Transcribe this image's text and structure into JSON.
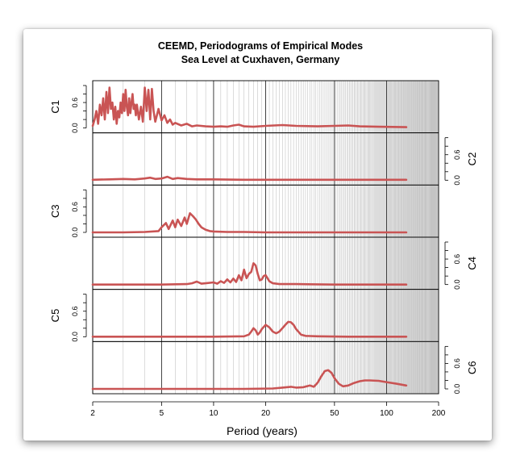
{
  "chart_data": {
    "type": "line",
    "title": "CEEMD, Periodograms of Empirical Modes",
    "subtitle": "Sea Level at Cuxhaven, Germany",
    "xlabel": "Period (years)",
    "xscale": "log",
    "xlim": [
      2,
      200
    ],
    "x_ticks": [
      2,
      5,
      10,
      20,
      50,
      100,
      200
    ],
    "x_tick_labels": [
      "2",
      "5",
      "10",
      "20",
      "50",
      "100",
      "200"
    ],
    "panel_ylim": [
      0,
      1.0
    ],
    "y_ticks": [
      0.0,
      0.6
    ],
    "y_tick_labels": [
      "0.0",
      "0.6"
    ],
    "grid": "vertical lines at each integer period",
    "line_color": "#c95454",
    "series": [
      {
        "name": "C1",
        "axis_side": "left",
        "x": [
          2.0,
          2.05,
          2.1,
          2.15,
          2.2,
          2.25,
          2.3,
          2.35,
          2.4,
          2.45,
          2.5,
          2.55,
          2.6,
          2.65,
          2.7,
          2.75,
          2.8,
          2.85,
          2.9,
          2.95,
          3.0,
          3.05,
          3.1,
          3.15,
          3.2,
          3.25,
          3.3,
          3.35,
          3.4,
          3.45,
          3.5,
          3.55,
          3.6,
          3.7,
          3.8,
          3.9,
          4.0,
          4.1,
          4.2,
          4.3,
          4.4,
          4.5,
          4.6,
          4.7,
          4.8,
          5.0,
          5.2,
          5.4,
          5.6,
          5.8,
          6.0,
          6.5,
          7.0,
          7.5,
          8.0,
          9.0,
          10.0,
          11.0,
          12.0,
          13.0,
          14.0,
          15.0,
          17.0,
          20.0,
          25.0,
          30.0,
          40.0,
          50.0,
          60.0,
          70.0,
          90.0,
          130.0
        ],
        "y": [
          0.05,
          0.2,
          0.4,
          0.1,
          0.55,
          0.3,
          0.7,
          0.2,
          0.85,
          0.35,
          0.95,
          0.45,
          0.6,
          0.2,
          0.5,
          0.1,
          0.4,
          0.25,
          0.6,
          0.35,
          0.8,
          0.4,
          0.9,
          0.5,
          0.3,
          0.7,
          0.35,
          0.6,
          0.8,
          0.45,
          0.55,
          0.3,
          0.55,
          0.2,
          0.5,
          0.15,
          0.95,
          0.4,
          0.9,
          0.2,
          0.92,
          0.4,
          0.15,
          0.3,
          0.45,
          0.18,
          0.3,
          0.12,
          0.2,
          0.08,
          0.12,
          0.06,
          0.1,
          0.04,
          0.06,
          0.04,
          0.03,
          0.04,
          0.03,
          0.06,
          0.08,
          0.04,
          0.03,
          0.05,
          0.07,
          0.05,
          0.04,
          0.05,
          0.06,
          0.04,
          0.03,
          0.02
        ]
      },
      {
        "name": "C2",
        "axis_side": "right",
        "x": [
          2.0,
          2.5,
          3.0,
          3.5,
          4.0,
          4.3,
          4.6,
          5.0,
          5.4,
          5.8,
          6.2,
          7.0,
          8.0,
          10.0,
          15.0,
          20.0,
          30.0,
          50.0,
          80.0,
          130.0
        ],
        "y": [
          0.01,
          0.02,
          0.03,
          0.02,
          0.04,
          0.06,
          0.03,
          0.04,
          0.08,
          0.03,
          0.05,
          0.03,
          0.02,
          0.02,
          0.01,
          0.01,
          0.01,
          0.01,
          0.01,
          0.01
        ]
      },
      {
        "name": "C3",
        "axis_side": "left",
        "x": [
          2.0,
          3.0,
          4.0,
          4.8,
          5.0,
          5.3,
          5.5,
          5.8,
          6.0,
          6.2,
          6.5,
          6.8,
          7.0,
          7.3,
          7.6,
          7.9,
          8.2,
          8.5,
          9.0,
          9.5,
          10.0,
          12.0,
          15.0,
          20.0,
          40.0,
          130.0
        ],
        "y": [
          0.0,
          0.0,
          0.01,
          0.03,
          0.12,
          0.22,
          0.08,
          0.28,
          0.12,
          0.3,
          0.15,
          0.35,
          0.2,
          0.45,
          0.38,
          0.3,
          0.2,
          0.12,
          0.06,
          0.03,
          0.02,
          0.01,
          0.01,
          0.0,
          0.0,
          0.0
        ]
      },
      {
        "name": "C4",
        "axis_side": "right",
        "x": [
          2.0,
          5.0,
          7.0,
          7.5,
          8.0,
          8.5,
          9.0,
          10.0,
          10.5,
          11.0,
          11.5,
          12.0,
          12.5,
          13.0,
          13.5,
          14.0,
          14.5,
          15.0,
          15.5,
          16.0,
          16.5,
          17.0,
          17.5,
          18.0,
          18.5,
          19.0,
          19.5,
          20.0,
          20.5,
          21.0,
          22.0,
          24.0,
          30.0,
          50.0,
          80.0,
          130.0
        ],
        "y": [
          0.0,
          0.0,
          0.01,
          0.03,
          0.07,
          0.02,
          0.03,
          0.05,
          0.02,
          0.08,
          0.04,
          0.12,
          0.05,
          0.14,
          0.06,
          0.22,
          0.1,
          0.35,
          0.15,
          0.25,
          0.3,
          0.5,
          0.45,
          0.25,
          0.1,
          0.12,
          0.2,
          0.22,
          0.15,
          0.08,
          0.03,
          0.01,
          0.01,
          0.0,
          0.0,
          0.0
        ]
      },
      {
        "name": "C5",
        "axis_side": "left",
        "x": [
          2.0,
          10.0,
          15.0,
          16.0,
          16.5,
          17.0,
          17.5,
          18.0,
          18.5,
          19.0,
          20.0,
          21.0,
          22.0,
          23.0,
          24.0,
          25.0,
          26.0,
          27.0,
          28.0,
          29.0,
          30.0,
          32.0,
          34.0,
          40.0,
          60.0,
          130.0
        ],
        "y": [
          0.0,
          0.0,
          0.01,
          0.05,
          0.12,
          0.2,
          0.15,
          0.05,
          0.1,
          0.18,
          0.28,
          0.22,
          0.12,
          0.08,
          0.12,
          0.2,
          0.28,
          0.35,
          0.34,
          0.28,
          0.18,
          0.05,
          0.02,
          0.01,
          0.0,
          0.0
        ]
      },
      {
        "name": "C6",
        "axis_side": "right",
        "x": [
          2.0,
          15.0,
          22.0,
          25.0,
          28.0,
          30.0,
          33.0,
          36.0,
          38.0,
          40.0,
          42.0,
          44.0,
          46.0,
          48.0,
          50.0,
          53.0,
          56.0,
          60.0,
          65.0,
          70.0,
          75.0,
          80.0,
          90.0,
          100.0,
          115.0,
          130.0
        ],
        "y": [
          0.0,
          0.0,
          0.01,
          0.03,
          0.05,
          0.03,
          0.04,
          0.08,
          0.05,
          0.15,
          0.3,
          0.42,
          0.44,
          0.38,
          0.25,
          0.12,
          0.06,
          0.08,
          0.14,
          0.18,
          0.2,
          0.2,
          0.19,
          0.16,
          0.12,
          0.08
        ]
      }
    ]
  }
}
